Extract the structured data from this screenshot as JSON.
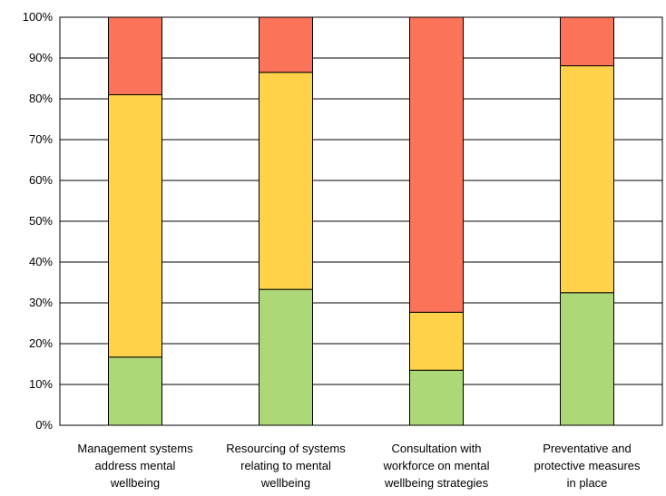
{
  "chart_data": {
    "type": "bar",
    "stacked": true,
    "percent": true,
    "categories": [
      [
        "Management systems",
        "address mental",
        "wellbeing"
      ],
      [
        "Resourcing of systems",
        "relating to mental",
        "wellbeing"
      ],
      [
        "Consultation with",
        "workforce on mental",
        "wellbeing strategies"
      ],
      [
        "Preventative and",
        "protective measures",
        "in place"
      ]
    ],
    "series": [
      {
        "values": [
          16.7,
          33.3,
          13.5,
          32.5
        ],
        "color": "#acd878"
      },
      {
        "values": [
          64.3,
          53.2,
          14.2,
          55.6
        ],
        "color": "#ffd24a"
      },
      {
        "values": [
          19.0,
          13.5,
          72.3,
          11.9
        ],
        "color": "#fb7359"
      }
    ],
    "ylim": [
      0,
      100
    ],
    "yticks": [
      "0%",
      "10%",
      "20%",
      "30%",
      "40%",
      "50%",
      "60%",
      "70%",
      "80%",
      "90%",
      "100%"
    ],
    "grid": true,
    "legend": "none"
  }
}
